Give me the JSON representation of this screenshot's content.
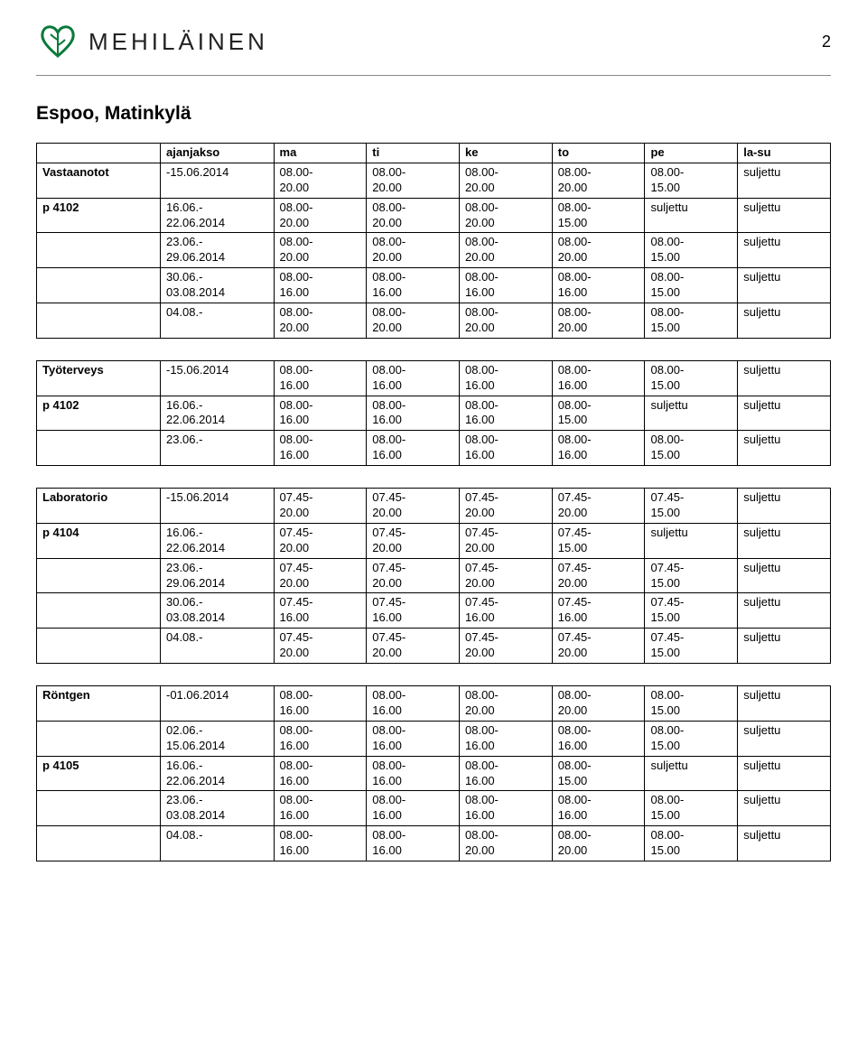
{
  "brand_name": "MEHILÄINEN",
  "page_number": "2",
  "location_title": "Espoo, Matinkylä",
  "tables": [
    {
      "header_left": "",
      "columns": [
        "ajanjakso",
        "ma",
        "ti",
        "ke",
        "to",
        "pe",
        "la-su"
      ],
      "rows": [
        {
          "label": "Vastaanotot",
          "period": "-15.06.2014",
          "cells": [
            "08.00-\n20.00",
            "08.00-\n20.00",
            "08.00-\n20.00",
            "08.00-\n20.00",
            "08.00-\n15.00",
            "suljettu"
          ]
        },
        {
          "label": "p 4102",
          "period": "16.06.-\n22.06.2014",
          "cells": [
            "08.00-\n20.00",
            "08.00-\n20.00",
            "08.00-\n20.00",
            "08.00-\n15.00",
            "suljettu",
            "suljettu"
          ]
        },
        {
          "label": "",
          "period": "23.06.-\n29.06.2014",
          "cells": [
            "08.00-\n20.00",
            "08.00-\n20.00",
            "08.00-\n20.00",
            "08.00-\n20.00",
            "08.00-\n15.00",
            "suljettu"
          ]
        },
        {
          "label": "",
          "period": "30.06.-\n03.08.2014",
          "cells": [
            "08.00-\n16.00",
            "08.00-\n16.00",
            "08.00-\n16.00",
            "08.00-\n16.00",
            "08.00-\n15.00",
            "suljettu"
          ]
        },
        {
          "label": "",
          "period": "04.08.-",
          "cells": [
            "08.00-\n20.00",
            "08.00-\n20.00",
            "08.00-\n20.00",
            "08.00-\n20.00",
            "08.00-\n15.00",
            "suljettu"
          ]
        }
      ]
    },
    {
      "header_left": "",
      "columns": null,
      "rows": [
        {
          "label": "Työterveys",
          "period": "-15.06.2014",
          "cells": [
            "08.00-\n16.00",
            "08.00-\n16.00",
            "08.00-\n16.00",
            "08.00-\n16.00",
            "08.00-\n15.00",
            "suljettu"
          ]
        },
        {
          "label": "p 4102",
          "period": "16.06.-\n22.06.2014",
          "cells": [
            "08.00-\n16.00",
            "08.00-\n16.00",
            "08.00-\n16.00",
            "08.00-\n15.00",
            "suljettu",
            "suljettu"
          ]
        },
        {
          "label": "",
          "period": "23.06.-",
          "cells": [
            "08.00-\n16.00",
            "08.00-\n16.00",
            "08.00-\n16.00",
            "08.00-\n16.00",
            "08.00-\n15.00",
            "suljettu"
          ]
        }
      ]
    },
    {
      "header_left": "",
      "columns": null,
      "rows": [
        {
          "label": "Laboratorio",
          "period": "-15.06.2014",
          "cells": [
            "07.45-\n20.00",
            "07.45-\n20.00",
            "07.45-\n20.00",
            "07.45-\n20.00",
            "07.45-\n15.00",
            "suljettu"
          ]
        },
        {
          "label": "p 4104",
          "period": "16.06.-\n22.06.2014",
          "cells": [
            "07.45-\n20.00",
            "07.45-\n20.00",
            "07.45-\n20.00",
            "07.45-\n15.00",
            "suljettu",
            "suljettu"
          ]
        },
        {
          "label": "",
          "period": "23.06.-\n29.06.2014",
          "cells": [
            "07.45-\n20.00",
            "07.45-\n20.00",
            "07.45-\n20.00",
            "07.45-\n20.00",
            "07.45-\n15.00",
            "suljettu"
          ]
        },
        {
          "label": "",
          "period": "30.06.-\n03.08.2014",
          "cells": [
            "07.45-\n16.00",
            "07.45-\n16.00",
            "07.45-\n16.00",
            "07.45-\n16.00",
            "07.45-\n15.00",
            "suljettu"
          ]
        },
        {
          "label": "",
          "period": "04.08.-",
          "cells": [
            "07.45-\n20.00",
            "07.45-\n20.00",
            "07.45-\n20.00",
            "07.45-\n20.00",
            "07.45-\n15.00",
            "suljettu"
          ]
        }
      ]
    },
    {
      "header_left": "",
      "columns": null,
      "rows": [
        {
          "label": "Röntgen",
          "period": "-01.06.2014",
          "cells": [
            "08.00-\n16.00",
            "08.00-\n16.00",
            "08.00-\n20.00",
            "08.00-\n20.00",
            "08.00-\n15.00",
            "suljettu"
          ]
        },
        {
          "label": "",
          "period": "02.06.-\n15.06.2014",
          "cells": [
            "08.00-\n16.00",
            "08.00-\n16.00",
            "08.00-\n16.00",
            "08.00-\n16.00",
            "08.00-\n15.00",
            "suljettu"
          ]
        },
        {
          "label": "p 4105",
          "period": "16.06.-\n22.06.2014",
          "cells": [
            "08.00-\n16.00",
            "08.00-\n16.00",
            "08.00-\n16.00",
            "08.00-\n15.00",
            "suljettu",
            "suljettu"
          ]
        },
        {
          "label": "",
          "period": "23.06.-\n03.08.2014",
          "cells": [
            "08.00-\n16.00",
            "08.00-\n16.00",
            "08.00-\n16.00",
            "08.00-\n16.00",
            "08.00-\n15.00",
            "suljettu"
          ]
        },
        {
          "label": "",
          "period": "04.08.-",
          "cells": [
            "08.00-\n16.00",
            "08.00-\n16.00",
            "08.00-\n20.00",
            "08.00-\n20.00",
            "08.00-\n15.00",
            "suljettu"
          ]
        }
      ]
    }
  ]
}
